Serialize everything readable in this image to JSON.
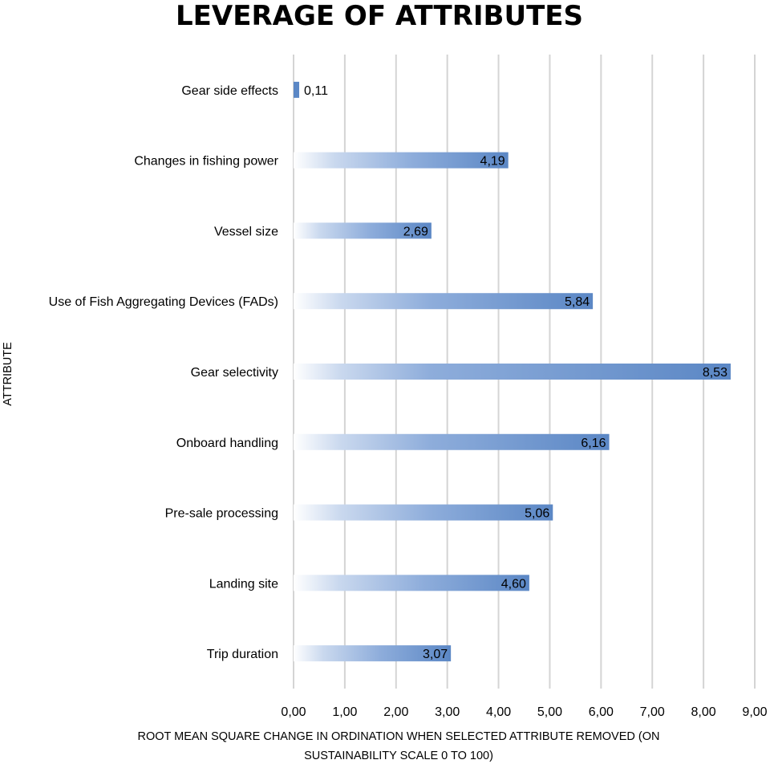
{
  "chart_data": {
    "type": "bar",
    "orientation": "horizontal",
    "title": "LEVERAGE OF ATTRIBUTES",
    "xlabel": "ROOT MEAN SQUARE CHANGE IN ORDINATION WHEN SELECTED ATTRIBUTE REMOVED (ON SUSTAINABILITY SCALE 0 TO 100)",
    "xlabel_lines": [
      "ROOT MEAN SQUARE CHANGE IN ORDINATION WHEN SELECTED ATTRIBUTE REMOVED (ON",
      "SUSTAINABILITY SCALE 0 TO 100)"
    ],
    "ylabel": "ATTRIBUTE",
    "xlim": [
      0,
      9
    ],
    "grid": true,
    "categories": [
      "Gear side effects",
      "Changes in fishing power",
      "Vessel size",
      "Use of Fish Aggregating Devices (FADs)",
      "Gear selectivity",
      "Onboard handling",
      "Pre-sale processing",
      "Landing site",
      "Trip duration"
    ],
    "values": [
      0.11,
      4.19,
      2.69,
      5.84,
      8.53,
      6.16,
      5.06,
      4.6,
      3.07
    ],
    "value_labels": [
      "0,11",
      "4,19",
      "2,69",
      "5,84",
      "8,53",
      "6,16",
      "5,06",
      "4,60",
      "3,07"
    ],
    "ticks": [
      0,
      1,
      2,
      3,
      4,
      5,
      6,
      7,
      8,
      9
    ],
    "tick_labels": [
      "0,00",
      "1,00",
      "2,00",
      "3,00",
      "4,00",
      "5,00",
      "6,00",
      "7,00",
      "8,00",
      "9,00"
    ],
    "bar_color": "#5b87c5",
    "grid_color": "#d4d4d4"
  }
}
